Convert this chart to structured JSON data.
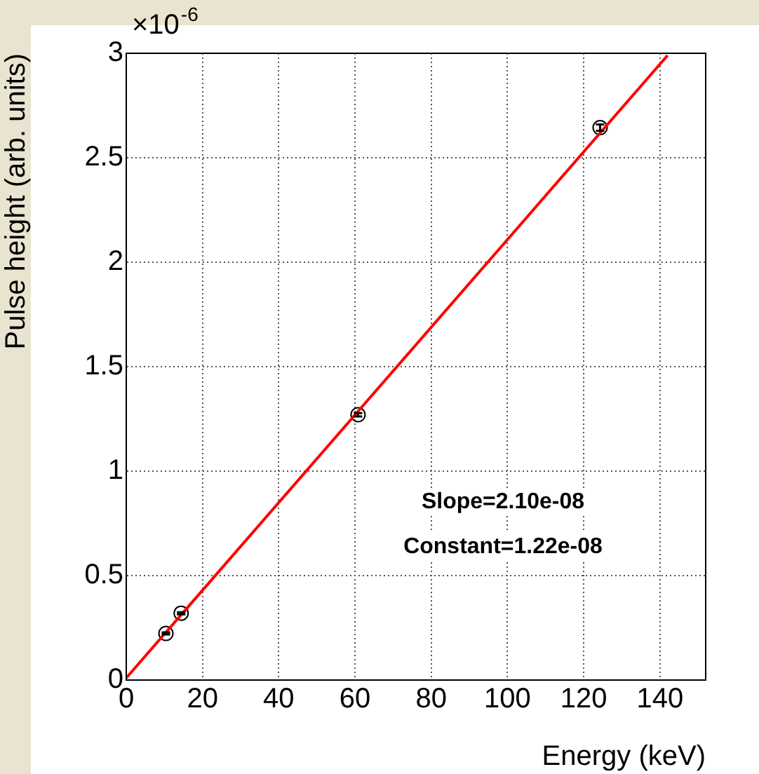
{
  "chart_data": {
    "type": "scatter",
    "xlabel": "Energy (keV)",
    "ylabel": "Pulse height (arb. units)",
    "xlim": [
      0,
      152
    ],
    "xticks": [
      0,
      20,
      40,
      60,
      80,
      100,
      120,
      140
    ],
    "ylim": [
      0,
      3
    ],
    "yticks": [
      0,
      0.5,
      1,
      1.5,
      2,
      2.5,
      3
    ],
    "grid": true,
    "annotations": [
      "×10$^{-6}$",
      "Slope=2.10e-08",
      "Constant=1.22e-08"
    ],
    "series": [
      {
        "type": "scatter",
        "x": [
          10.4,
          14.4,
          60.8,
          124.3
        ],
        "values": [
          0.223,
          0.32,
          1.27,
          2.644
        ],
        "errors": [
          0.005,
          0.005,
          0.008,
          0.015
        ],
        "color": "#000000",
        "marker": "circle"
      },
      {
        "type": "line",
        "x": [
          0,
          142
        ],
        "values": [
          0.01,
          2.99
        ],
        "color": "#ff0000",
        "marker": "none"
      }
    ]
  }
}
